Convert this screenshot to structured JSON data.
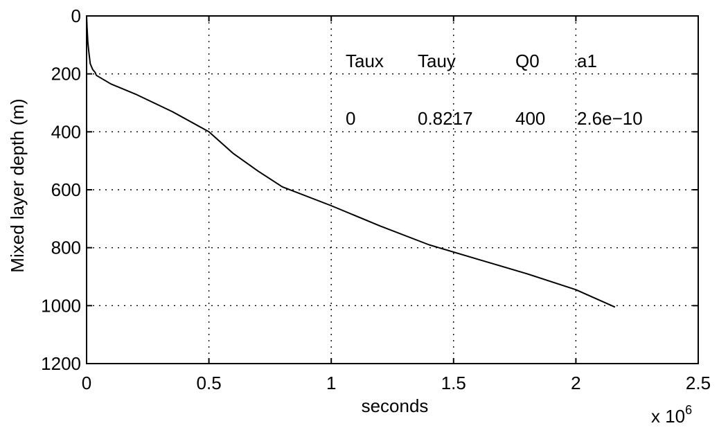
{
  "chart_data": {
    "type": "line",
    "xlabel": "seconds",
    "ylabel": "Mixed layer depth (m)",
    "x_multiplier_label": "x 10",
    "x_multiplier_exponent": "6",
    "xlim": [
      0,
      2500000
    ],
    "ylim": [
      0,
      1200
    ],
    "y_reversed": true,
    "grid": true,
    "x_ticks": [
      0,
      500000,
      1000000,
      1500000,
      2000000,
      2500000
    ],
    "x_tick_labels": [
      "0",
      "0.5",
      "1",
      "1.5",
      "2",
      "2.5"
    ],
    "y_ticks": [
      0,
      200,
      400,
      600,
      800,
      1000,
      1200
    ],
    "y_tick_labels": [
      "0",
      "200",
      "400",
      "600",
      "800",
      "1000",
      "1200"
    ],
    "series": [
      {
        "x": [
          0,
          2000,
          5000,
          10000,
          15000,
          25000,
          35000,
          40000,
          100000,
          200000,
          350000,
          500000,
          600000,
          700000,
          800000,
          1000000,
          1200000,
          1400000,
          1600000,
          1800000,
          2000000,
          2160000
        ],
        "y": [
          0,
          40,
          90,
          130,
          165,
          185,
          195,
          205,
          235,
          270,
          330,
          400,
          475,
          535,
          590,
          655,
          725,
          790,
          840,
          890,
          945,
          1005
        ]
      }
    ],
    "annotation_table": {
      "headers": [
        "Taux",
        "Tauy",
        "Q0",
        "a1"
      ],
      "values": [
        "0",
        "0.8217",
        "400",
        "2.6e−10"
      ]
    }
  }
}
